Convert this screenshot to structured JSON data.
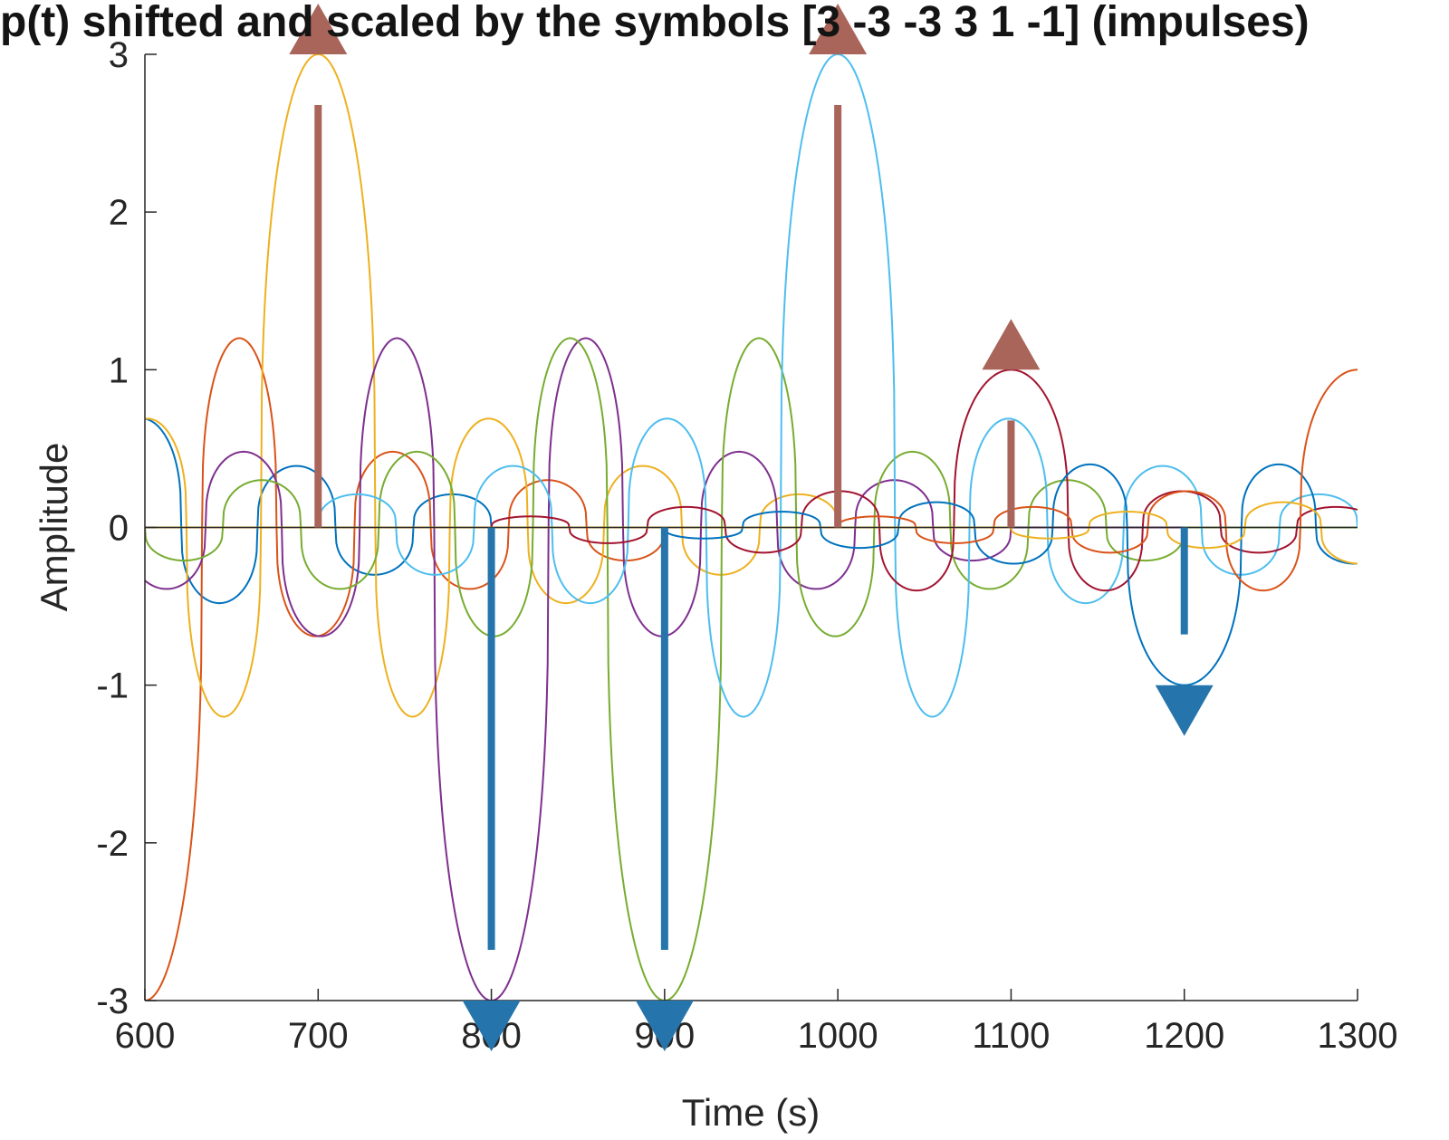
{
  "chart_data": {
    "type": "line",
    "title": "p(t) shifted and scaled by the symbols [3 -3 -3  3  1 -1] (impulses)",
    "xlabel": "Time (s)",
    "ylabel": "Amplitude",
    "xlim": [
      600,
      1300
    ],
    "ylim": [
      -3,
      3
    ],
    "xticks": [
      "600",
      "700",
      "800",
      "900",
      "1000",
      "1100",
      "1200",
      "1300"
    ],
    "yticks": [
      "-3",
      "-2",
      "-1",
      "0",
      "1",
      "2",
      "3"
    ],
    "grid": false,
    "symbol_period": 100,
    "pulse_zero_crossings": [
      0.33,
      0.76,
      1.21,
      1.65,
      2.1,
      2.55,
      3.0
    ],
    "series": [
      {
        "symbol_time": 500,
        "amplitude": 3,
        "color": "#0072BD"
      },
      {
        "symbol_time": 600,
        "amplitude": -3,
        "color": "#D95319"
      },
      {
        "symbol_time": 700,
        "amplitude": 3,
        "color": "#EDB120"
      },
      {
        "symbol_time": 800,
        "amplitude": -3,
        "color": "#7E2F8E"
      },
      {
        "symbol_time": 900,
        "amplitude": -3,
        "color": "#77AC30"
      },
      {
        "symbol_time": 1000,
        "amplitude": 3,
        "color": "#4DBEEE"
      },
      {
        "symbol_time": 1100,
        "amplitude": 1,
        "color": "#A2142F"
      },
      {
        "symbol_time": 1200,
        "amplitude": -1,
        "color": "#0072BD"
      },
      {
        "symbol_time": 1300,
        "amplitude": 1,
        "color": "#D95319"
      },
      {
        "symbol_time": 1400,
        "amplitude": -1,
        "color": "#EDB120"
      }
    ],
    "impulses": [
      {
        "x": 700,
        "value": 3,
        "color": "#A9655A"
      },
      {
        "x": 800,
        "value": -3,
        "color": "#2574AB"
      },
      {
        "x": 900,
        "value": -3,
        "color": "#2574AB"
      },
      {
        "x": 1000,
        "value": 3,
        "color": "#A9655A"
      },
      {
        "x": 1100,
        "value": 1,
        "color": "#A9655A"
      },
      {
        "x": 1200,
        "value": -1,
        "color": "#2574AB"
      }
    ]
  }
}
